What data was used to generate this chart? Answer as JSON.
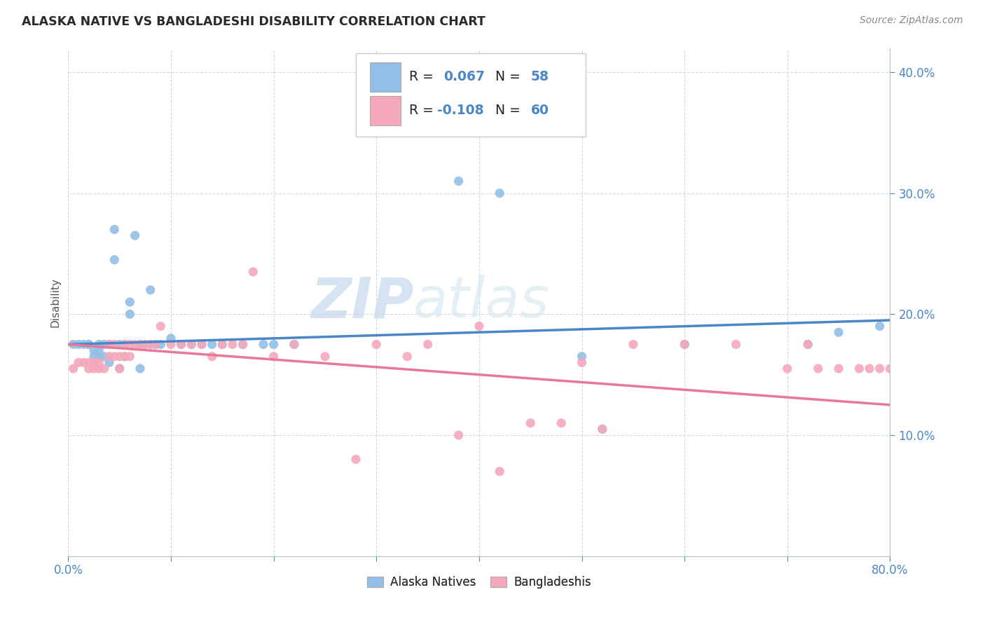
{
  "title": "ALASKA NATIVE VS BANGLADESHI DISABILITY CORRELATION CHART",
  "source": "Source: ZipAtlas.com",
  "ylabel": "Disability",
  "xlim": [
    0.0,
    0.8
  ],
  "ylim": [
    0.0,
    0.42
  ],
  "x_ticks": [
    0.0,
    0.1,
    0.2,
    0.3,
    0.4,
    0.5,
    0.6,
    0.7,
    0.8
  ],
  "y_ticks": [
    0.1,
    0.2,
    0.3,
    0.4
  ],
  "background_color": "#ffffff",
  "grid_color": "#d8d8d8",
  "color_blue": "#92bfe8",
  "color_pink": "#f4a8bc",
  "line_color_blue": "#4a86c8",
  "line_color_pink": "#e87898",
  "tick_color": "#4a86c8",
  "axis_color": "#bbbbbb",
  "watermark_zip": "ZIP",
  "watermark_atlas": "atlas",
  "alaska_x": [
    0.005,
    0.01,
    0.015,
    0.02,
    0.02,
    0.025,
    0.025,
    0.03,
    0.03,
    0.03,
    0.035,
    0.035,
    0.04,
    0.04,
    0.045,
    0.045,
    0.05,
    0.05,
    0.055,
    0.055,
    0.06,
    0.06,
    0.065,
    0.07,
    0.07,
    0.075,
    0.08,
    0.08,
    0.085,
    0.09,
    0.1,
    0.11,
    0.12,
    0.13,
    0.14,
    0.15,
    0.17,
    0.19,
    0.2,
    0.22,
    0.38,
    0.42,
    0.5,
    0.52,
    0.6,
    0.72,
    0.75,
    0.79
  ],
  "alaska_y": [
    0.175,
    0.175,
    0.175,
    0.175,
    0.175,
    0.165,
    0.17,
    0.175,
    0.17,
    0.165,
    0.175,
    0.165,
    0.16,
    0.175,
    0.27,
    0.245,
    0.175,
    0.155,
    0.175,
    0.165,
    0.21,
    0.2,
    0.265,
    0.175,
    0.155,
    0.175,
    0.22,
    0.175,
    0.175,
    0.175,
    0.18,
    0.175,
    0.175,
    0.175,
    0.175,
    0.175,
    0.175,
    0.175,
    0.175,
    0.175,
    0.31,
    0.3,
    0.165,
    0.105,
    0.175,
    0.175,
    0.185,
    0.19
  ],
  "bangla_x": [
    0.005,
    0.01,
    0.015,
    0.02,
    0.02,
    0.025,
    0.025,
    0.03,
    0.03,
    0.035,
    0.04,
    0.04,
    0.045,
    0.045,
    0.05,
    0.05,
    0.055,
    0.055,
    0.06,
    0.06,
    0.065,
    0.07,
    0.075,
    0.08,
    0.085,
    0.09,
    0.1,
    0.11,
    0.12,
    0.13,
    0.14,
    0.15,
    0.16,
    0.17,
    0.18,
    0.2,
    0.22,
    0.25,
    0.28,
    0.3,
    0.35,
    0.38,
    0.45,
    0.5,
    0.52,
    0.55,
    0.6,
    0.65,
    0.7,
    0.72,
    0.73,
    0.75,
    0.77,
    0.78,
    0.79,
    0.8,
    0.33,
    0.4,
    0.42,
    0.48
  ],
  "bangla_y": [
    0.155,
    0.16,
    0.16,
    0.16,
    0.155,
    0.155,
    0.16,
    0.155,
    0.16,
    0.155,
    0.175,
    0.165,
    0.175,
    0.165,
    0.165,
    0.155,
    0.165,
    0.175,
    0.175,
    0.165,
    0.175,
    0.175,
    0.175,
    0.175,
    0.175,
    0.19,
    0.175,
    0.175,
    0.175,
    0.175,
    0.165,
    0.175,
    0.175,
    0.175,
    0.235,
    0.165,
    0.175,
    0.165,
    0.08,
    0.175,
    0.175,
    0.1,
    0.11,
    0.16,
    0.105,
    0.175,
    0.175,
    0.175,
    0.155,
    0.175,
    0.155,
    0.155,
    0.155,
    0.155,
    0.155,
    0.155,
    0.165,
    0.19,
    0.07,
    0.11
  ],
  "alaska_line_x": [
    0.0,
    0.8
  ],
  "alaska_line_y": [
    0.175,
    0.195
  ],
  "bangla_line_x": [
    0.0,
    0.8
  ],
  "bangla_line_y": [
    0.175,
    0.125
  ]
}
